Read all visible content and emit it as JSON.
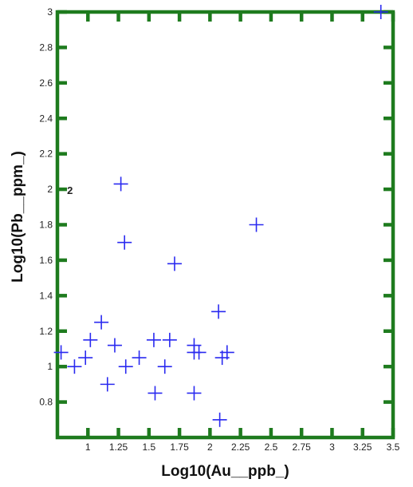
{
  "chart_data": {
    "type": "scatter",
    "marker": "plus",
    "xlabel": "Log10(Au__ppb_)",
    "ylabel": "Log10(Pb__ppm_)",
    "xlim": [
      0.75,
      3.5
    ],
    "ylim": [
      0.6,
      3.0
    ],
    "x_ticks": [
      "1",
      "1.25",
      "1.5",
      "1.75",
      "2",
      "2.25",
      "2.5",
      "2.75",
      "3",
      "3.25",
      "3.5"
    ],
    "y_ticks": [
      "0.8",
      "1",
      "1.2",
      "1.4",
      "1.6",
      "1.8",
      "2",
      "2.2",
      "2.4",
      "2.6",
      "2.8",
      "3"
    ],
    "colors": {
      "frame": "#1e7b1e",
      "marker": "#2a2af0"
    },
    "annotation": {
      "text": "2",
      "x": 0.79,
      "y": 2.0
    },
    "series": [
      {
        "x": [
          0.78,
          0.89,
          0.98,
          1.02,
          1.11,
          1.16,
          1.22,
          1.27,
          1.3,
          1.31,
          1.42,
          1.54,
          1.55,
          1.63,
          1.67,
          1.71,
          1.87,
          1.87,
          1.87,
          1.91,
          2.07,
          2.08,
          2.1,
          2.14,
          2.38,
          3.4
        ],
        "y": [
          1.08,
          1.0,
          1.05,
          1.15,
          1.25,
          0.9,
          1.12,
          2.03,
          1.7,
          1.0,
          1.05,
          1.15,
          0.85,
          1.0,
          1.15,
          1.58,
          1.08,
          1.12,
          0.85,
          1.08,
          1.31,
          0.7,
          1.05,
          1.08,
          1.8,
          3.0
        ]
      }
    ]
  }
}
